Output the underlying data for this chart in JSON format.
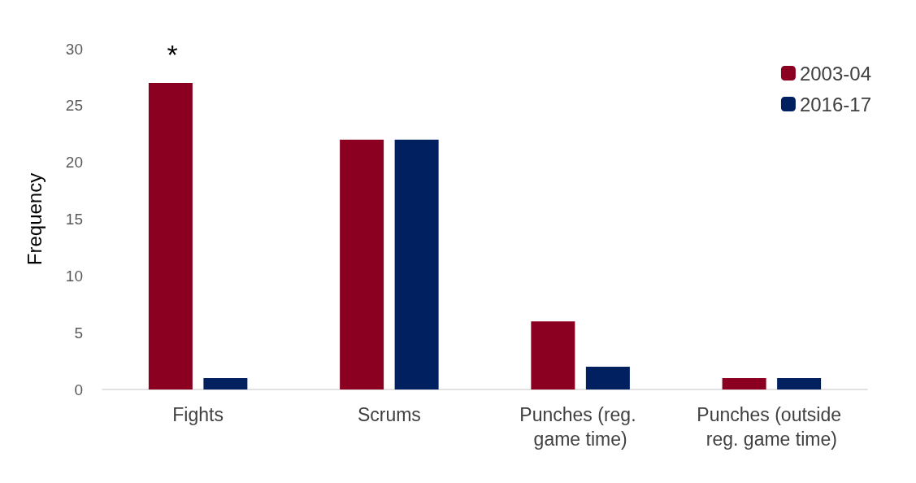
{
  "chart_data": {
    "type": "bar",
    "ylabel": "Frequency",
    "categories": [
      "Fights",
      "Scrums",
      "Punches (reg. game time)",
      "Punches (outside reg. game time)"
    ],
    "series": [
      {
        "name": "2003-04",
        "color": "#8b0020",
        "values": [
          27,
          22,
          6,
          1
        ]
      },
      {
        "name": "2016-17",
        "color": "#002060",
        "values": [
          1,
          22,
          2,
          1
        ]
      }
    ],
    "ylim": [
      0,
      30
    ],
    "yticks": [
      0,
      5,
      10,
      15,
      20,
      25,
      30
    ],
    "grid": false,
    "legend": "top right",
    "annotations": [
      "*"
    ]
  }
}
